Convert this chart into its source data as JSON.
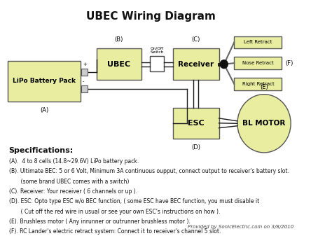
{
  "title": "UBEC Wiring Diagram",
  "bg_color": "#ffffff",
  "box_color_yellow": "#e8eda0",
  "dark": "#1a1a1a",
  "gray": "#666666",
  "specs_title": "Specifications:",
  "spec_lines": [
    "(A).  4 to 8 cells (14.8~29.6V) LiPo battery pack.",
    "(B). Ultimate BEC: 5 or 6 Volt, Minimum 3A continuous oupput, connect output to receiver's battery slot.",
    "       (some brand UBEC comes with a switch)",
    "(C). Receiver: Your receiver ( 6 channels or up ).",
    "(D). ESC: Opto type ESC w/o BEC function, ( some ESC have BEC function, you must disable it",
    "       ( Cut off the red wire in usual or see your own ESC's instructions on how ).",
    "(E). Brushless motor ( Any inrunner or outrunner brushless motor ).",
    "(F). RC Lander's electric retract system: Connect it to receiver's channel 5 slot."
  ],
  "footer": "Provided by SonicElectric.com on 3/8/2010",
  "labels": {
    "battery": "LiPo Battery Pack",
    "battery_label": "(A)",
    "ubec": "UBEC",
    "ubec_label": "(B)",
    "switch": "On/Off\nSwitch",
    "receiver": "Receiver",
    "receiver_label": "(C)",
    "esc": "ESC",
    "esc_label": "(D)",
    "motor": "BL MOTOR",
    "motor_label": "(E)",
    "retract_label": "(F)",
    "left_retract": "Left Retract",
    "nose_retract": "Nose Retract",
    "right_retract": "Right Retract"
  }
}
